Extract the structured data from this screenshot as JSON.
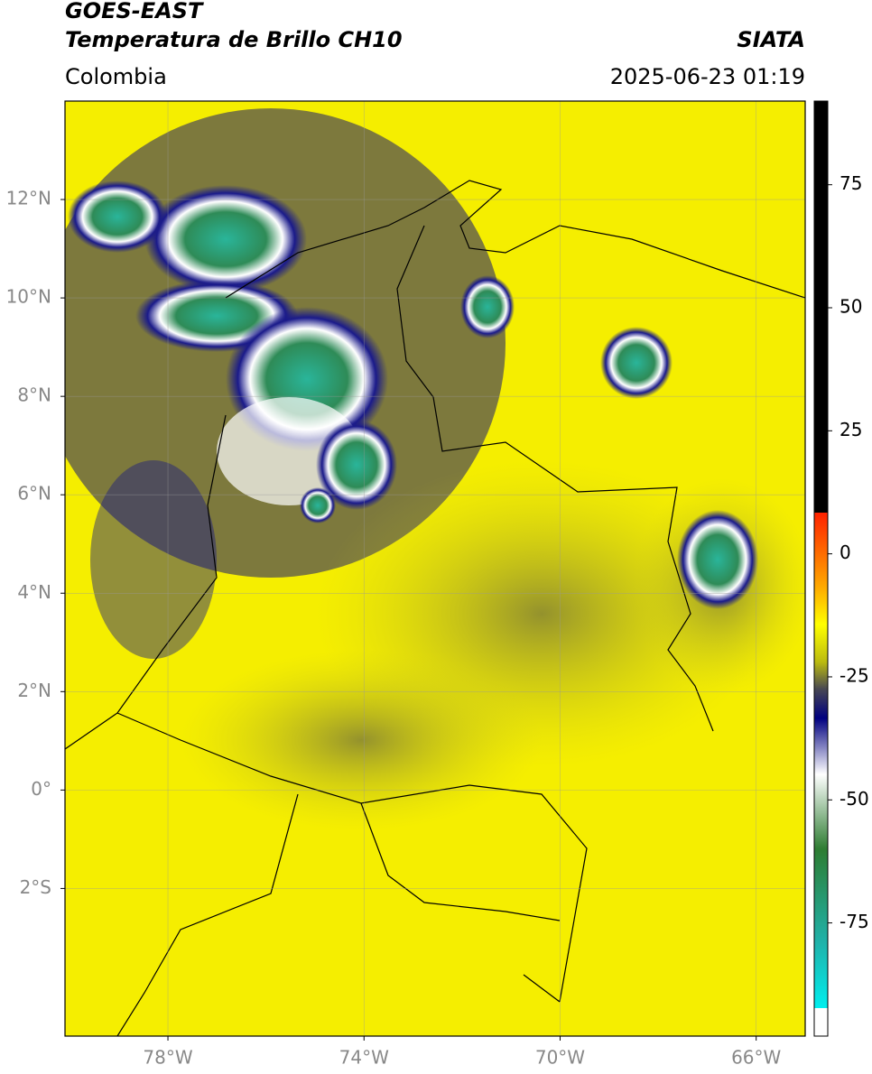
{
  "header": {
    "title_line1": "GOES-EAST",
    "title_line2": "Temperatura de Brillo CH10",
    "source": "SIATA",
    "region": "Colombia",
    "datetime": "2025-06-23 01:19"
  },
  "map": {
    "xlim": [
      -80.1,
      -65
    ],
    "ylim": [
      -5,
      14
    ],
    "xticks": [
      {
        "value": -78,
        "label": "78°W"
      },
      {
        "value": -74,
        "label": "74°W"
      },
      {
        "value": -70,
        "label": "70°W"
      },
      {
        "value": -66,
        "label": "66°W"
      }
    ],
    "yticks": [
      {
        "value": 12,
        "label": "12°N"
      },
      {
        "value": 10,
        "label": "10°N"
      },
      {
        "value": 8,
        "label": "8°N"
      },
      {
        "value": 6,
        "label": "6°N"
      },
      {
        "value": 4,
        "label": "4°N"
      },
      {
        "value": 2,
        "label": "2°N"
      },
      {
        "value": 0,
        "label": "0°"
      },
      {
        "value": -2,
        "label": "2°S"
      }
    ],
    "grid": true
  },
  "colorbar": {
    "lim": [
      -98,
      92
    ],
    "ticks": [
      75,
      50,
      25,
      0,
      -25,
      -50,
      -75
    ]
  }
}
